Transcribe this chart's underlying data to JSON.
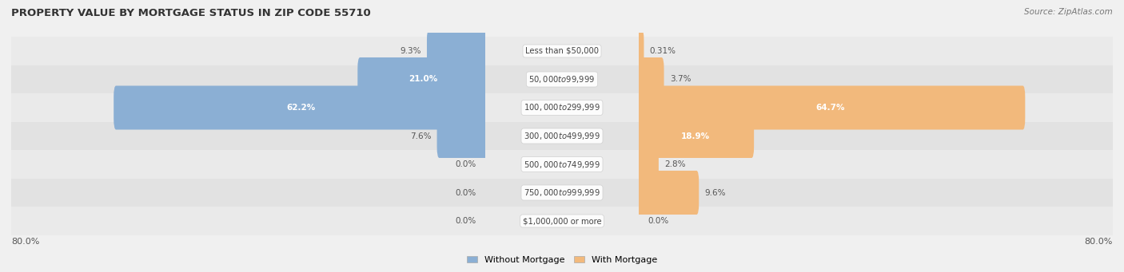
{
  "title": "PROPERTY VALUE BY MORTGAGE STATUS IN ZIP CODE 55710",
  "source": "Source: ZipAtlas.com",
  "categories": [
    "Less than $50,000",
    "$50,000 to $99,999",
    "$100,000 to $299,999",
    "$300,000 to $499,999",
    "$500,000 to $749,999",
    "$750,000 to $999,999",
    "$1,000,000 or more"
  ],
  "without_mortgage": [
    9.3,
    21.0,
    62.2,
    7.6,
    0.0,
    0.0,
    0.0
  ],
  "with_mortgage": [
    0.31,
    3.7,
    64.7,
    18.9,
    2.8,
    9.6,
    0.0
  ],
  "axis_max": 80.0,
  "axis_label_left": "80.0%",
  "axis_label_right": "80.0%",
  "color_without": "#8BAFD4",
  "color_with": "#F2B97C",
  "legend_without": "Without Mortgage",
  "legend_with": "With Mortgage",
  "row_colors": [
    "#EAEAEA",
    "#E2E2E2"
  ],
  "fig_bg": "#F0F0F0",
  "bar_height": 0.55,
  "label_outside_color": "#555555",
  "label_inside_color": "#FFFFFF",
  "center_box_color": "#FFFFFF",
  "center_border_color": "#CCCCCC"
}
